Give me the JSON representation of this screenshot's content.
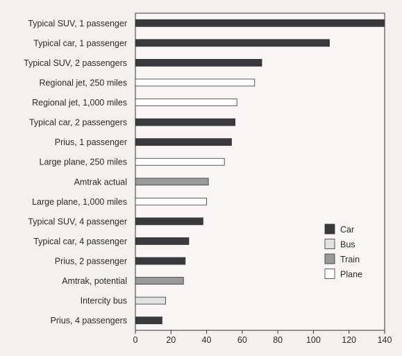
{
  "chart_data": {
    "type": "bar",
    "orientation": "horizontal",
    "title": "",
    "xlabel": "",
    "ylabel": "",
    "xlim": [
      0,
      140
    ],
    "xticks": [
      0,
      20,
      40,
      60,
      80,
      100,
      120,
      140
    ],
    "grid": false,
    "legend_position": "right",
    "categories": [
      "Typical SUV, 1 passenger",
      "Typical car, 1 passenger",
      "Typical SUV, 2 passengers",
      "Regional jet, 250 miles",
      "Regional jet, 1,000 miles",
      "Typical car, 2 passengers",
      "Prius, 1 passenger",
      "Large plane, 250 miles",
      "Amtrak actual",
      "Large plane, 1,000 miles",
      "Typical SUV, 4 passenger",
      "Typical car, 4 passenger",
      "Prius, 2 passenger",
      "Amtrak, potential",
      "Intercity bus",
      "Prius, 4 passengers"
    ],
    "values": [
      140,
      109,
      71,
      67,
      57,
      56,
      54,
      50,
      41,
      40,
      38,
      30,
      28,
      27,
      17,
      15
    ],
    "groups": [
      "Car",
      "Car",
      "Car",
      "Plane",
      "Plane",
      "Car",
      "Car",
      "Plane",
      "Train",
      "Plane",
      "Car",
      "Car",
      "Car",
      "Train",
      "Bus",
      "Car"
    ],
    "legend": [
      {
        "label": "Car",
        "color": "#3a3a3e"
      },
      {
        "label": "Bus",
        "color": "#e2e2e2"
      },
      {
        "label": "Train",
        "color": "#9a9a9a"
      },
      {
        "label": "Plane",
        "color": "#ffffff"
      }
    ]
  }
}
